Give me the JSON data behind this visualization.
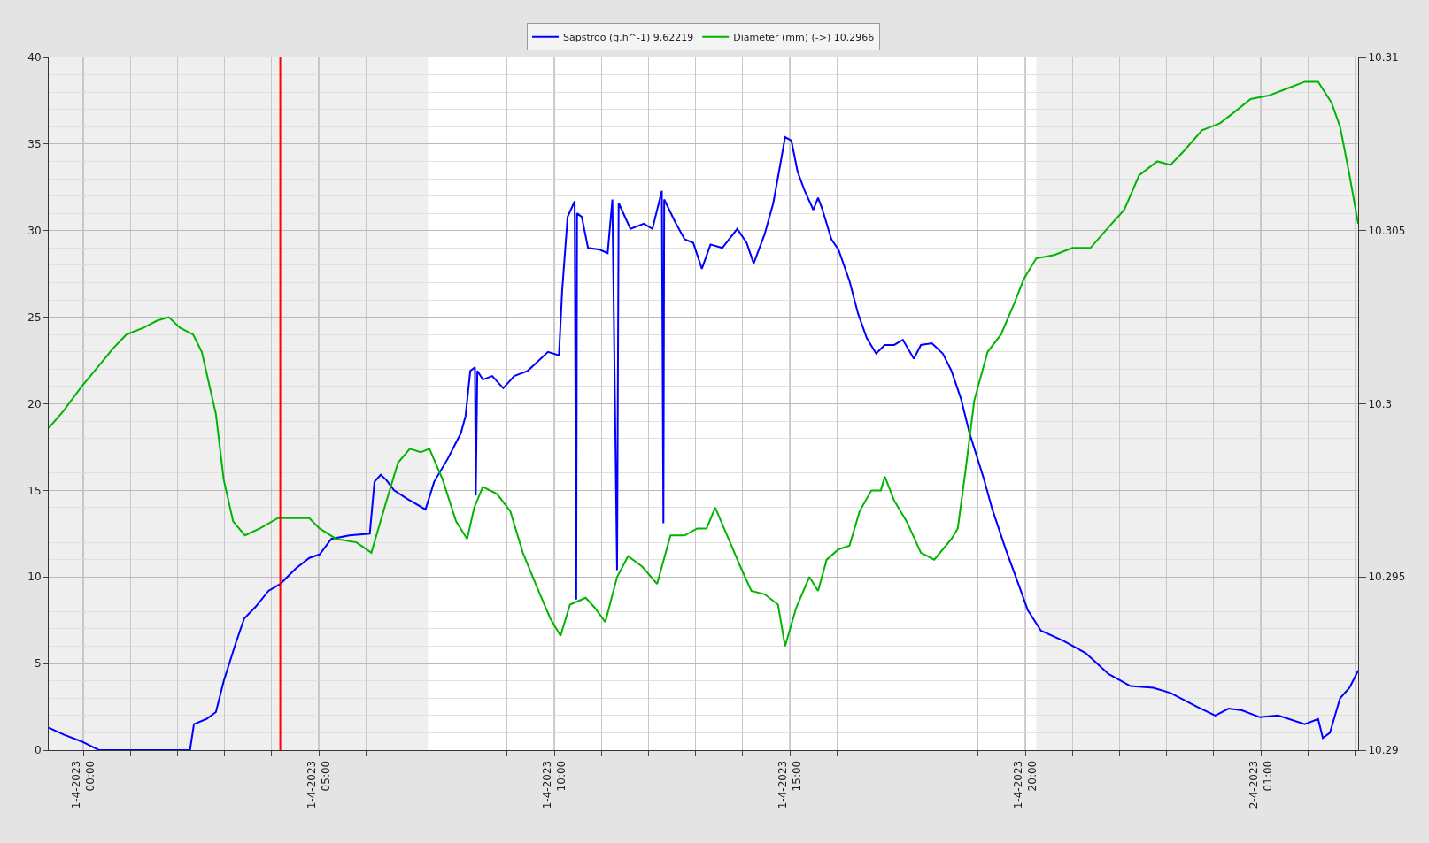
{
  "chart_data": {
    "type": "line",
    "series": [
      {
        "name": "Sapstroo (g.h^-1) 9.62219",
        "color": "#0000ff",
        "axis": "y",
        "x": [
          "2023-03-31T23:16",
          "2023-03-31T23:35",
          "2023-03-31T23:58",
          "2023-04-01T00:20",
          "2023-04-01T02:16",
          "2023-04-01T02:21",
          "2023-04-01T02:37",
          "2023-04-01T02:49",
          "2023-04-01T02:59",
          "2023-04-01T03:13",
          "2023-04-01T03:25",
          "2023-04-01T03:40",
          "2023-04-01T03:56",
          "2023-04-01T04:11",
          "2023-04-01T04:31",
          "2023-04-01T04:48",
          "2023-04-01T05:01",
          "2023-04-01T05:16",
          "2023-04-01T05:39",
          "2023-04-01T06:05",
          "2023-04-01T06:11",
          "2023-04-01T06:19",
          "2023-04-01T06:26",
          "2023-04-01T06:36",
          "2023-04-01T06:53",
          "2023-04-01T07:16",
          "2023-04-01T07:27",
          "2023-04-01T07:44",
          "2023-04-01T08:01",
          "2023-04-01T08:07",
          "2023-04-01T08:13",
          "2023-04-01T08:19",
          "2023-04-01T08:20",
          "2023-04-01T08:22",
          "2023-04-01T08:29",
          "2023-04-01T08:41",
          "2023-04-01T08:55",
          "2023-04-01T09:09",
          "2023-04-01T09:26",
          "2023-04-01T09:38",
          "2023-04-01T09:52",
          "2023-04-01T10:06",
          "2023-04-01T10:10",
          "2023-04-01T10:17",
          "2023-04-01T10:26",
          "2023-04-01T10:28",
          "2023-04-01T10:29",
          "2023-04-01T10:35",
          "2023-04-01T10:43",
          "2023-04-01T10:58",
          "2023-04-01T11:08",
          "2023-04-01T11:14",
          "2023-04-01T11:20",
          "2023-04-01T11:22",
          "2023-04-01T11:26",
          "2023-04-01T11:37",
          "2023-04-01T11:54",
          "2023-04-01T12:05",
          "2023-04-01T12:17",
          "2023-04-01T12:19",
          "2023-04-01T12:20",
          "2023-04-01T12:34",
          "2023-04-01T12:46",
          "2023-04-01T12:57",
          "2023-04-01T13:08",
          "2023-04-01T13:19",
          "2023-04-01T13:34",
          "2023-04-01T13:53",
          "2023-04-01T14:05",
          "2023-04-01T14:14",
          "2023-04-01T14:28",
          "2023-04-01T14:39",
          "2023-04-01T14:47",
          "2023-04-01T14:54",
          "2023-04-01T15:02",
          "2023-04-01T15:10",
          "2023-04-01T15:19",
          "2023-04-01T15:30",
          "2023-04-01T15:36",
          "2023-04-01T15:41",
          "2023-04-01T15:53",
          "2023-04-01T16:02",
          "2023-04-01T16:16",
          "2023-04-01T16:27",
          "2023-04-01T16:38",
          "2023-04-01T16:50",
          "2023-04-01T17:01",
          "2023-04-01T17:13",
          "2023-04-01T17:24",
          "2023-04-01T17:38",
          "2023-04-01T17:47",
          "2023-04-01T18:01",
          "2023-04-01T18:15",
          "2023-04-01T18:26",
          "2023-04-01T18:38",
          "2023-04-01T18:49",
          "2023-04-01T19:07",
          "2023-04-01T19:18",
          "2023-04-01T19:35",
          "2023-04-01T19:52",
          "2023-04-01T20:03",
          "2023-04-01T20:20",
          "2023-04-01T20:49",
          "2023-04-01T21:17",
          "2023-04-01T21:46",
          "2023-04-01T22:14",
          "2023-04-01T22:43",
          "2023-04-01T23:05",
          "2023-04-01T23:39",
          "2023-04-02T00:02",
          "2023-04-02T00:19",
          "2023-04-02T00:36",
          "2023-04-02T00:59",
          "2023-04-02T01:22",
          "2023-04-02T01:56",
          "2023-04-02T02:13",
          "2023-04-02T02:19",
          "2023-04-02T02:28",
          "2023-04-02T02:41",
          "2023-04-02T02:53",
          "2023-04-02T03:04"
        ],
        "values": [
          1.3,
          0.9,
          0.5,
          0,
          0,
          1.5,
          1.8,
          2.2,
          4.0,
          6.0,
          7.6,
          8.3,
          9.2,
          9.6,
          10.5,
          11.1,
          11.3,
          12.2,
          12.4,
          12.5,
          15.5,
          15.9,
          15.6,
          15.0,
          14.5,
          13.9,
          15.5,
          16.8,
          18.3,
          19.3,
          21.9,
          22.1,
          14.7,
          21.9,
          21.4,
          21.6,
          20.9,
          21.6,
          21.9,
          22.4,
          23.0,
          22.8,
          26.5,
          30.8,
          31.7,
          8.7,
          31.0,
          30.8,
          29.0,
          28.9,
          28.7,
          31.8,
          10.4,
          31.6,
          31.2,
          30.1,
          30.4,
          30.1,
          32.3,
          13.1,
          31.8,
          30.5,
          29.5,
          29.3,
          27.8,
          29.2,
          29.0,
          30.1,
          29.3,
          28.1,
          29.8,
          31.6,
          33.6,
          35.4,
          35.2,
          33.4,
          32.3,
          31.2,
          31.9,
          31.3,
          29.5,
          28.9,
          27.1,
          25.2,
          23.8,
          22.9,
          23.4,
          23.4,
          23.7,
          22.6,
          23.4,
          23.5,
          22.9,
          21.9,
          20.3,
          18.3,
          15.7,
          13.9,
          11.6,
          9.5,
          8.1,
          6.9,
          6.3,
          5.6,
          4.4,
          3.7,
          3.6,
          3.3,
          2.5,
          2.0,
          2.4,
          2.3,
          1.9,
          2.0,
          1.5,
          1.8,
          0.7,
          1.0,
          3.0,
          3.6,
          4.6
        ]
      },
      {
        "name": "Diameter (mm) (->) 10.2966",
        "color": "#00b400",
        "axis": "y2",
        "x": [
          "2023-03-31T23:16",
          "2023-03-31T23:35",
          "2023-03-31T23:58",
          "2023-04-01T00:20",
          "2023-04-01T00:38",
          "2023-04-01T00:55",
          "2023-04-01T01:17",
          "2023-04-01T01:34",
          "2023-04-01T01:49",
          "2023-04-01T02:03",
          "2023-04-01T02:20",
          "2023-04-01T02:31",
          "2023-04-01T02:49",
          "2023-04-01T02:59",
          "2023-04-01T03:11",
          "2023-04-01T03:26",
          "2023-04-01T03:45",
          "2023-04-01T04:08",
          "2023-04-01T04:19",
          "2023-04-01T04:48",
          "2023-04-01T05:01",
          "2023-04-01T05:22",
          "2023-04-01T05:48",
          "2023-04-01T06:07",
          "2023-04-01T06:25",
          "2023-04-01T06:41",
          "2023-04-01T06:56",
          "2023-04-01T07:10",
          "2023-04-01T07:21",
          "2023-04-01T07:38",
          "2023-04-01T07:55",
          "2023-04-01T08:09",
          "2023-04-01T08:18",
          "2023-04-01T08:29",
          "2023-04-01T08:47",
          "2023-04-01T09:04",
          "2023-04-01T09:20",
          "2023-04-01T09:38",
          "2023-04-01T09:55",
          "2023-04-01T10:08",
          "2023-04-01T10:20",
          "2023-04-01T10:40",
          "2023-04-01T10:52",
          "2023-04-01T11:05",
          "2023-04-01T11:20",
          "2023-04-01T11:34",
          "2023-04-01T11:52",
          "2023-04-01T12:11",
          "2023-04-01T12:28",
          "2023-04-01T12:46",
          "2023-04-01T13:02",
          "2023-04-01T13:14",
          "2023-04-01T13:25",
          "2023-04-01T13:42",
          "2023-04-01T13:57",
          "2023-04-01T14:11",
          "2023-04-01T14:28",
          "2023-04-01T14:45",
          "2023-04-01T14:54",
          "2023-04-01T15:08",
          "2023-04-01T15:25",
          "2023-04-01T15:36",
          "2023-04-01T15:47",
          "2023-04-01T16:02",
          "2023-04-01T16:16",
          "2023-04-01T16:29",
          "2023-04-01T16:44",
          "2023-04-01T16:56",
          "2023-04-01T17:01",
          "2023-04-01T17:13",
          "2023-04-01T17:29",
          "2023-04-01T17:47",
          "2023-04-01T18:04",
          "2023-04-01T18:26",
          "2023-04-01T18:34",
          "2023-04-01T18:44",
          "2023-04-01T18:55",
          "2023-04-01T19:12",
          "2023-04-01T19:29",
          "2023-04-01T19:46",
          "2023-04-01T19:58",
          "2023-04-01T20:14",
          "2023-04-01T20:37",
          "2023-04-01T21:00",
          "2023-04-01T21:23",
          "2023-04-01T21:46",
          "2023-04-01T22:06",
          "2023-04-01T22:25",
          "2023-04-01T22:48",
          "2023-04-01T23:05",
          "2023-04-01T23:22",
          "2023-04-01T23:45",
          "2023-04-02T00:08",
          "2023-04-02T00:25",
          "2023-04-02T00:47",
          "2023-04-02T01:10",
          "2023-04-02T01:33",
          "2023-04-02T01:56",
          "2023-04-02T02:13",
          "2023-04-02T02:30",
          "2023-04-02T02:41",
          "2023-04-02T02:53",
          "2023-04-02T03:04"
        ],
        "values": [
          10.2993,
          10.2998,
          10.3005,
          10.3011,
          10.3016,
          10.302,
          10.3022,
          10.3024,
          10.3025,
          10.3022,
          10.302,
          10.3015,
          10.2997,
          10.2978,
          10.2966,
          10.2962,
          10.2964,
          10.2967,
          10.2967,
          10.2967,
          10.2964,
          10.2961,
          10.296,
          10.2957,
          10.2971,
          10.2983,
          10.2987,
          10.2986,
          10.2987,
          10.2978,
          10.2966,
          10.2961,
          10.297,
          10.2976,
          10.2974,
          10.2969,
          10.2957,
          10.2947,
          10.2938,
          10.2933,
          10.2942,
          10.2944,
          10.2941,
          10.2937,
          10.295,
          10.2956,
          10.2953,
          10.2948,
          10.2962,
          10.2962,
          10.2964,
          10.2964,
          10.297,
          10.2961,
          10.2953,
          10.2946,
          10.2945,
          10.2942,
          10.293,
          10.2941,
          10.295,
          10.2946,
          10.2955,
          10.2958,
          10.2959,
          10.2969,
          10.2975,
          10.2975,
          10.2979,
          10.2972,
          10.2966,
          10.2957,
          10.2955,
          10.2961,
          10.2964,
          10.2981,
          10.3001,
          10.3015,
          10.302,
          10.3029,
          10.3036,
          10.3042,
          10.3043,
          10.3045,
          10.3045,
          10.3051,
          10.3056,
          10.3066,
          10.307,
          10.3069,
          10.3073,
          10.3079,
          10.3081,
          10.3084,
          10.3088,
          10.3089,
          10.3091,
          10.3093,
          10.3093,
          10.3087,
          10.308,
          10.3066,
          10.3052
        ]
      }
    ],
    "xlim": [
      "2023-03-31T23:16",
      "2023-04-02T03:04"
    ],
    "xticks": [
      {
        "value": "2023-04-01T00:00",
        "label": "1-4-2023\n00:00"
      },
      {
        "value": "2023-04-01T01:00",
        "label": null
      },
      {
        "value": "2023-04-01T02:00",
        "label": null
      },
      {
        "value": "2023-04-01T03:00",
        "label": null
      },
      {
        "value": "2023-04-01T04:00",
        "label": null
      },
      {
        "value": "2023-04-01T05:00",
        "label": "1-4-2023\n05:00"
      },
      {
        "value": "2023-04-01T06:00",
        "label": null
      },
      {
        "value": "2023-04-01T07:00",
        "label": null
      },
      {
        "value": "2023-04-01T08:00",
        "label": null
      },
      {
        "value": "2023-04-01T09:00",
        "label": null
      },
      {
        "value": "2023-04-01T10:00",
        "label": "1-4-2023\n10:00"
      },
      {
        "value": "2023-04-01T11:00",
        "label": null
      },
      {
        "value": "2023-04-01T12:00",
        "label": null
      },
      {
        "value": "2023-04-01T13:00",
        "label": null
      },
      {
        "value": "2023-04-01T14:00",
        "label": null
      },
      {
        "value": "2023-04-01T15:00",
        "label": "1-4-2023\n15:00"
      },
      {
        "value": "2023-04-01T16:00",
        "label": null
      },
      {
        "value": "2023-04-01T17:00",
        "label": null
      },
      {
        "value": "2023-04-01T18:00",
        "label": null
      },
      {
        "value": "2023-04-01T19:00",
        "label": null
      },
      {
        "value": "2023-04-01T20:00",
        "label": "1-4-2023\n20:00"
      },
      {
        "value": "2023-04-01T21:00",
        "label": null
      },
      {
        "value": "2023-04-01T22:00",
        "label": null
      },
      {
        "value": "2023-04-01T23:00",
        "label": null
      },
      {
        "value": "2023-04-02T00:00",
        "label": null
      },
      {
        "value": "2023-04-02T01:00",
        "label": "2-4-2023\n01:00"
      },
      {
        "value": "2023-04-02T02:00",
        "label": null
      },
      {
        "value": "2023-04-02T03:00",
        "label": null
      }
    ],
    "ylim": [
      0,
      40
    ],
    "yticks": [
      0,
      5,
      10,
      15,
      20,
      25,
      30,
      35,
      40
    ],
    "y2lim": [
      10.29,
      10.31
    ],
    "y2ticks": [
      10.29,
      10.295,
      10.3,
      10.305,
      10.31
    ],
    "bands": [
      {
        "axis": "x",
        "from": "2023-03-31T23:16",
        "to": "2023-04-01T07:19",
        "color": "#efefef"
      },
      {
        "axis": "x",
        "from": "2023-04-01T20:14",
        "to": "2023-04-02T03:04",
        "color": "#efefef"
      }
    ],
    "ref_lines": [
      {
        "axis": "x",
        "value": "2023-04-01T04:11",
        "color": "#ff0000"
      }
    ],
    "grid": true,
    "legend": "top",
    "marker": "none",
    "line_style": "solid"
  }
}
